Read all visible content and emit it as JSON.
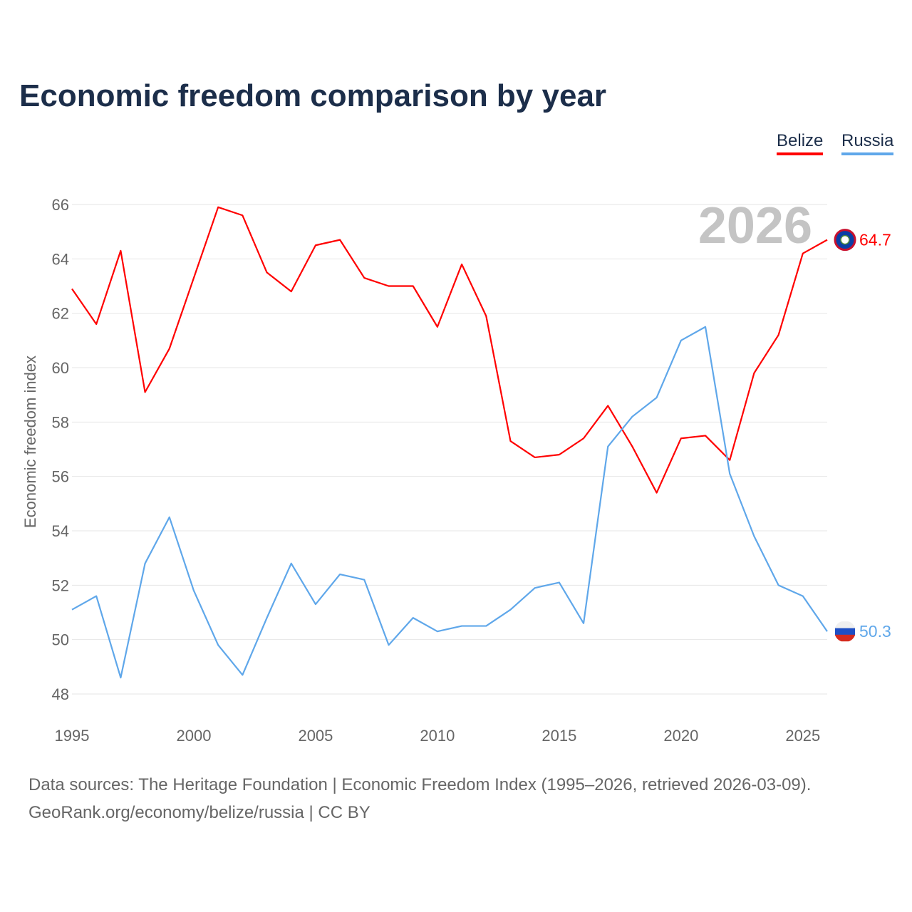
{
  "title": "Economic freedom comparison by year",
  "footer": {
    "line1": "Data sources: The Heritage Foundation | Economic Freedom Index (1995–2026, retrieved 2026-03-09).",
    "line2": "GeoRank.org/economy/belize/russia | CC BY"
  },
  "chart_data": {
    "type": "line",
    "title": "Economic freedom comparison by year",
    "xlabel": "",
    "ylabel": "Economic freedom index",
    "ylim": [
      48,
      66
    ],
    "xlim": [
      1995,
      2026
    ],
    "yticks": [
      "48",
      "50",
      "52",
      "54",
      "56",
      "58",
      "60",
      "62",
      "64",
      "66"
    ],
    "xticks": [
      "1995",
      "2000",
      "2005",
      "2010",
      "2015",
      "2020",
      "2025"
    ],
    "grid": true,
    "legend_position": "top-right",
    "year_watermark": "2026",
    "x": [
      1995,
      1996,
      1997,
      1998,
      1999,
      2000,
      2001,
      2002,
      2003,
      2004,
      2005,
      2006,
      2007,
      2008,
      2009,
      2010,
      2011,
      2012,
      2013,
      2014,
      2015,
      2016,
      2017,
      2018,
      2019,
      2020,
      2021,
      2022,
      2023,
      2024,
      2025,
      2026
    ],
    "series": [
      {
        "name": "Belize",
        "color": "#ff0000",
        "end_label": "64.7",
        "values": [
          62.9,
          61.6,
          64.3,
          59.1,
          60.7,
          63.3,
          65.9,
          65.6,
          63.5,
          62.8,
          64.5,
          64.7,
          63.3,
          63.0,
          63.0,
          61.5,
          63.8,
          61.9,
          57.3,
          56.7,
          56.8,
          57.4,
          58.6,
          57.1,
          55.4,
          57.4,
          57.5,
          56.6,
          59.8,
          61.2,
          64.2,
          64.7
        ]
      },
      {
        "name": "Russia",
        "color": "#5fa7ea",
        "end_label": "50.3",
        "values": [
          51.1,
          51.6,
          48.6,
          52.8,
          54.5,
          51.8,
          49.8,
          48.7,
          50.8,
          52.8,
          51.3,
          52.4,
          52.2,
          49.8,
          50.8,
          50.3,
          50.5,
          50.5,
          51.1,
          51.9,
          52.1,
          50.6,
          57.1,
          58.2,
          58.9,
          61.0,
          61.5,
          56.1,
          53.8,
          52.0,
          51.6,
          50.3
        ]
      }
    ]
  }
}
